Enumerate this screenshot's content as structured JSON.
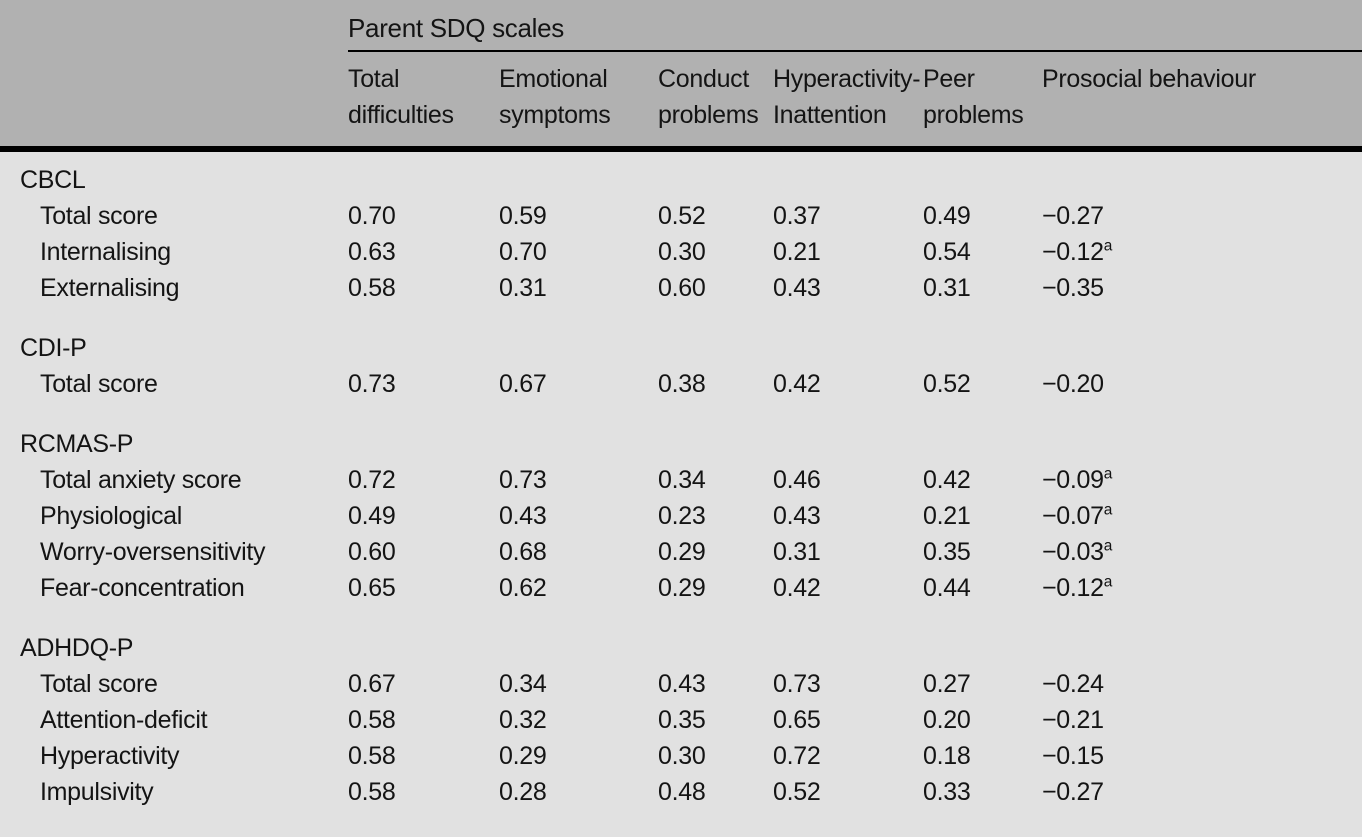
{
  "colors": {
    "header_band_bg": "#b1b1b1",
    "body_bg": "#e1e1e1",
    "rule_color": "#000000",
    "text_color": "#141414"
  },
  "table": {
    "group_header": "Parent SDQ scales",
    "columns": [
      "Total difficulties",
      "Emotional symptoms",
      "Conduct problems",
      "Hyperactivity-Inattention",
      "Peer problems",
      "Prosocial behaviour"
    ],
    "sections": [
      {
        "heading": "CBCL",
        "rows": [
          {
            "label": "Total score",
            "values": [
              "0.70",
              "0.59",
              "0.52",
              "0.37",
              "0.49",
              "−0.27"
            ],
            "sup": ""
          },
          {
            "label": "Internalising",
            "values": [
              "0.63",
              "0.70",
              "0.30",
              "0.21",
              "0.54",
              "−0.12"
            ],
            "sup": "a"
          },
          {
            "label": "Externalising",
            "values": [
              "0.58",
              "0.31",
              "0.60",
              "0.43",
              "0.31",
              "−0.35"
            ],
            "sup": ""
          }
        ]
      },
      {
        "heading": "CDI-P",
        "rows": [
          {
            "label": "Total score",
            "values": [
              "0.73",
              "0.67",
              "0.38",
              "0.42",
              "0.52",
              "−0.20"
            ],
            "sup": ""
          }
        ]
      },
      {
        "heading": "RCMAS-P",
        "rows": [
          {
            "label": "Total anxiety score",
            "values": [
              "0.72",
              "0.73",
              "0.34",
              "0.46",
              "0.42",
              "−0.09"
            ],
            "sup": "a"
          },
          {
            "label": "Physiological",
            "values": [
              "0.49",
              "0.43",
              "0.23",
              "0.43",
              "0.21",
              "−0.07"
            ],
            "sup": "a"
          },
          {
            "label": "Worry-oversensitivity",
            "values": [
              "0.60",
              "0.68",
              "0.29",
              "0.31",
              "0.35",
              "−0.03"
            ],
            "sup": "a"
          },
          {
            "label": "Fear-concentration",
            "values": [
              "0.65",
              "0.62",
              "0.29",
              "0.42",
              "0.44",
              "−0.12"
            ],
            "sup": "a"
          }
        ]
      },
      {
        "heading": "ADHDQ-P",
        "rows": [
          {
            "label": "Total score",
            "values": [
              "0.67",
              "0.34",
              "0.43",
              "0.73",
              "0.27",
              "−0.24"
            ],
            "sup": ""
          },
          {
            "label": "Attention-deficit",
            "values": [
              "0.58",
              "0.32",
              "0.35",
              "0.65",
              "0.20",
              "−0.21"
            ],
            "sup": ""
          },
          {
            "label": "Hyperactivity",
            "values": [
              "0.58",
              "0.29",
              "0.30",
              "0.72",
              "0.18",
              "−0.15"
            ],
            "sup": ""
          },
          {
            "label": "Impulsivity",
            "values": [
              "0.58",
              "0.28",
              "0.48",
              "0.52",
              "0.33",
              "−0.27"
            ],
            "sup": ""
          }
        ]
      }
    ]
  }
}
